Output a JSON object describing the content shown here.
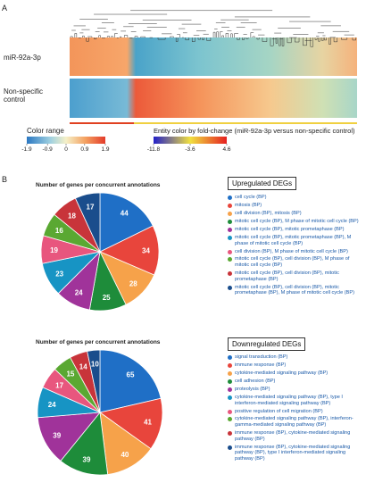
{
  "panel_a": {
    "label": "A",
    "rows": [
      "miR-92a-3p",
      "Non-specific control"
    ],
    "color_range": {
      "title": "Color range",
      "lim": [
        -1.9,
        1.9
      ],
      "ticks": [
        -1.9,
        -0.9,
        0,
        0.9,
        1.9
      ]
    },
    "fold_change": {
      "title": "Entity color by fold-change (miR-92a-3p versus non-specific control)",
      "lim": [
        -11.8,
        4.6
      ],
      "ticks": [
        -11.8,
        -3.6,
        4.6
      ]
    }
  },
  "panel_b": {
    "label": "B"
  },
  "chart_data": [
    {
      "type": "pie",
      "title": "Number of genes per concurrent annotations",
      "legend_title": "Upregulated DEGs",
      "categories": [
        "cell cycle (BP)",
        "mitosis (BP)",
        "cell division (BP), mitosis (BP)",
        "mitotic cell cycle (BP), M phase of mitotic cell cycle (BP)",
        "mitotic cell cycle (BP), mitotic prometaphase (BP)",
        "mitotic cell cycle (BP), mitotic prometaphase (BP), M phase of mitotic cell cycle (BP)",
        "cell division (BP), M phase of mitotic cell cycle (BP)",
        "mitotic cell cycle (BP), cell division (BP), M phase of mitotic cell cycle (BP)",
        "mitotic cell cycle (BP), cell division (BP), mitotic prometaphase (BP)",
        "mitotic cell cycle (BP), cell division (BP), mitotic prometaphase (BP), M phase of mitotic cell cycle (BP)"
      ],
      "values": [
        44,
        34,
        28,
        25,
        24,
        23,
        19,
        16,
        18,
        17
      ],
      "colors": [
        "#1f6fc6",
        "#e8453c",
        "#f6a24a",
        "#1e8c3a",
        "#a0339a",
        "#1794c4",
        "#e8567e",
        "#5aa832",
        "#c8343a",
        "#1a4d8c"
      ]
    },
    {
      "type": "pie",
      "title": "Number of genes per concurrent annotations",
      "legend_title": "Downregulated DEGs",
      "categories": [
        "signal transduction (BP)",
        "immune response (BP)",
        "cytokine-mediated signaling pathway (BP)",
        "cell adhesion (BP)",
        "proteolysis (BP)",
        "cytokine-mediated signaling pathway (BP), type I interferon-mediated signaling pathway (BP)",
        "positive regulation of cell migration (BP)",
        "cytokine-mediated signaling pathway (BP), interferon-gamma-mediated signaling pathway (BP)",
        "immune response (BP), cytokine-mediated signaling pathway (BP)",
        "immune response (BP), cytokine-mediated signaling pathway (BP), type I interferon-mediated signaling pathway (BP)"
      ],
      "values": [
        65,
        41,
        40,
        39,
        39,
        24,
        17,
        15,
        14,
        10
      ],
      "colors": [
        "#1f6fc6",
        "#e8453c",
        "#f6a24a",
        "#1e8c3a",
        "#a0339a",
        "#1794c4",
        "#e8567e",
        "#5aa832",
        "#c8343a",
        "#1a4d8c"
      ]
    }
  ]
}
